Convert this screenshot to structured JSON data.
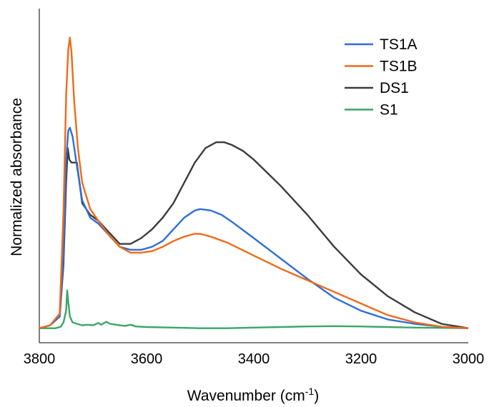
{
  "chart_data": {
    "type": "line",
    "xlabel": "Wavenumber (cm",
    "xlabel_sup": "-1",
    "xlabel_suffix": ")",
    "ylabel": "Normalized absorbance",
    "xlim": [
      3800,
      3000
    ],
    "x_reversed": true,
    "ylim": [
      -0.05,
      1.1
    ],
    "x_ticks": [
      "3800",
      "3600",
      "3400",
      "3200",
      "3000"
    ],
    "y_ticks_shown": false,
    "grid": false,
    "legend_position": "top-right",
    "series": [
      {
        "name": "TS1A",
        "color": "#2f6fd6",
        "points": [
          [
            3800,
            0.0
          ],
          [
            3780,
            0.01
          ],
          [
            3762,
            0.04
          ],
          [
            3755,
            0.25
          ],
          [
            3750,
            0.58
          ],
          [
            3746,
            0.68
          ],
          [
            3743,
            0.69
          ],
          [
            3738,
            0.66
          ],
          [
            3730,
            0.56
          ],
          [
            3720,
            0.44
          ],
          [
            3705,
            0.38
          ],
          [
            3690,
            0.36
          ],
          [
            3670,
            0.32
          ],
          [
            3650,
            0.28
          ],
          [
            3630,
            0.27
          ],
          [
            3610,
            0.27
          ],
          [
            3590,
            0.28
          ],
          [
            3570,
            0.3
          ],
          [
            3550,
            0.34
          ],
          [
            3530,
            0.38
          ],
          [
            3510,
            0.405
          ],
          [
            3500,
            0.41
          ],
          [
            3480,
            0.405
          ],
          [
            3460,
            0.39
          ],
          [
            3440,
            0.365
          ],
          [
            3400,
            0.31
          ],
          [
            3350,
            0.24
          ],
          [
            3300,
            0.17
          ],
          [
            3250,
            0.105
          ],
          [
            3200,
            0.06
          ],
          [
            3150,
            0.03
          ],
          [
            3100,
            0.015
          ],
          [
            3050,
            0.005
          ],
          [
            3000,
            0.0
          ]
        ]
      },
      {
        "name": "TS1B",
        "color": "#ee6a1a",
        "points": [
          [
            3800,
            0.0
          ],
          [
            3780,
            0.01
          ],
          [
            3762,
            0.05
          ],
          [
            3755,
            0.4
          ],
          [
            3750,
            0.8
          ],
          [
            3746,
            0.96
          ],
          [
            3743,
            1.0
          ],
          [
            3740,
            0.95
          ],
          [
            3735,
            0.78
          ],
          [
            3728,
            0.62
          ],
          [
            3720,
            0.5
          ],
          [
            3705,
            0.41
          ],
          [
            3690,
            0.37
          ],
          [
            3670,
            0.32
          ],
          [
            3650,
            0.28
          ],
          [
            3630,
            0.26
          ],
          [
            3610,
            0.26
          ],
          [
            3590,
            0.265
          ],
          [
            3570,
            0.28
          ],
          [
            3550,
            0.3
          ],
          [
            3530,
            0.315
          ],
          [
            3510,
            0.325
          ],
          [
            3500,
            0.325
          ],
          [
            3480,
            0.315
          ],
          [
            3450,
            0.295
          ],
          [
            3400,
            0.25
          ],
          [
            3350,
            0.205
          ],
          [
            3300,
            0.165
          ],
          [
            3250,
            0.125
          ],
          [
            3200,
            0.085
          ],
          [
            3150,
            0.045
          ],
          [
            3100,
            0.02
          ],
          [
            3050,
            0.005
          ],
          [
            3000,
            0.0
          ]
        ]
      },
      {
        "name": "DS1",
        "color": "#3c3c3c",
        "points": [
          [
            3800,
            0.0
          ],
          [
            3780,
            0.01
          ],
          [
            3762,
            0.04
          ],
          [
            3755,
            0.22
          ],
          [
            3750,
            0.5
          ],
          [
            3747,
            0.62
          ],
          [
            3744,
            0.58
          ],
          [
            3740,
            0.57
          ],
          [
            3730,
            0.57
          ],
          [
            3720,
            0.43
          ],
          [
            3705,
            0.39
          ],
          [
            3690,
            0.37
          ],
          [
            3670,
            0.33
          ],
          [
            3650,
            0.29
          ],
          [
            3630,
            0.29
          ],
          [
            3610,
            0.31
          ],
          [
            3590,
            0.34
          ],
          [
            3570,
            0.38
          ],
          [
            3550,
            0.43
          ],
          [
            3530,
            0.5
          ],
          [
            3510,
            0.57
          ],
          [
            3490,
            0.62
          ],
          [
            3470,
            0.64
          ],
          [
            3455,
            0.64
          ],
          [
            3440,
            0.63
          ],
          [
            3420,
            0.61
          ],
          [
            3400,
            0.58
          ],
          [
            3350,
            0.49
          ],
          [
            3300,
            0.39
          ],
          [
            3250,
            0.28
          ],
          [
            3200,
            0.185
          ],
          [
            3150,
            0.11
          ],
          [
            3100,
            0.055
          ],
          [
            3050,
            0.015
          ],
          [
            3000,
            0.0
          ]
        ]
      },
      {
        "name": "S1",
        "color": "#3aa668",
        "points": [
          [
            3800,
            0.0
          ],
          [
            3770,
            0.0
          ],
          [
            3760,
            0.005
          ],
          [
            3755,
            0.02
          ],
          [
            3750,
            0.06
          ],
          [
            3748,
            0.13
          ],
          [
            3746,
            0.09
          ],
          [
            3743,
            0.04
          ],
          [
            3738,
            0.02
          ],
          [
            3730,
            0.015
          ],
          [
            3720,
            0.01
          ],
          [
            3710,
            0.012
          ],
          [
            3700,
            0.01
          ],
          [
            3690,
            0.018
          ],
          [
            3685,
            0.012
          ],
          [
            3675,
            0.022
          ],
          [
            3668,
            0.015
          ],
          [
            3660,
            0.013
          ],
          [
            3650,
            0.01
          ],
          [
            3640,
            0.008
          ],
          [
            3630,
            0.012
          ],
          [
            3620,
            0.006
          ],
          [
            3600,
            0.004
          ],
          [
            3550,
            0.002
          ],
          [
            3500,
            0.0
          ],
          [
            3450,
            0.0
          ],
          [
            3400,
            0.002
          ],
          [
            3350,
            0.004
          ],
          [
            3300,
            0.006
          ],
          [
            3250,
            0.007
          ],
          [
            3200,
            0.006
          ],
          [
            3150,
            0.004
          ],
          [
            3100,
            0.002
          ],
          [
            3050,
            0.001
          ],
          [
            3000,
            0.0
          ]
        ]
      }
    ]
  }
}
